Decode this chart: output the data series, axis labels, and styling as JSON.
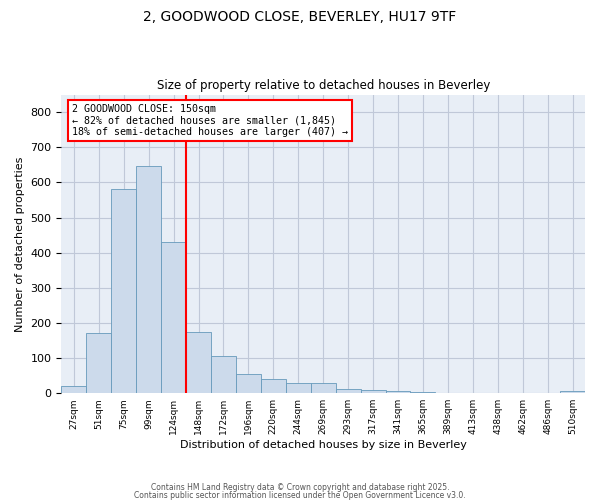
{
  "title1": "2, GOODWOOD CLOSE, BEVERLEY, HU17 9TF",
  "title2": "Size of property relative to detached houses in Beverley",
  "xlabel": "Distribution of detached houses by size in Beverley",
  "ylabel": "Number of detached properties",
  "bar_labels": [
    "27sqm",
    "51sqm",
    "75sqm",
    "99sqm",
    "124sqm",
    "148sqm",
    "172sqm",
    "196sqm",
    "220sqm",
    "244sqm",
    "269sqm",
    "293sqm",
    "317sqm",
    "341sqm",
    "365sqm",
    "389sqm",
    "413sqm",
    "438sqm",
    "462sqm",
    "486sqm",
    "510sqm"
  ],
  "bar_values": [
    20,
    170,
    580,
    648,
    430,
    175,
    105,
    55,
    40,
    30,
    30,
    13,
    8,
    5,
    3,
    2,
    0,
    0,
    0,
    0,
    5
  ],
  "bar_color": "#ccdaeb",
  "bar_edge_color": "#6699bb",
  "red_line_x": 5.5,
  "annotation_title": "2 GOODWOOD CLOSE: 150sqm",
  "annotation_line1": "← 82% of detached houses are smaller (1,845)",
  "annotation_line2": "18% of semi-detached houses are larger (407) →",
  "ylim": [
    0,
    850
  ],
  "yticks": [
    0,
    100,
    200,
    300,
    400,
    500,
    600,
    700,
    800
  ],
  "grid_color": "#c0c8d8",
  "background_color": "#e8eef6",
  "footer1": "Contains HM Land Registry data © Crown copyright and database right 2025.",
  "footer2": "Contains public sector information licensed under the Open Government Licence v3.0."
}
